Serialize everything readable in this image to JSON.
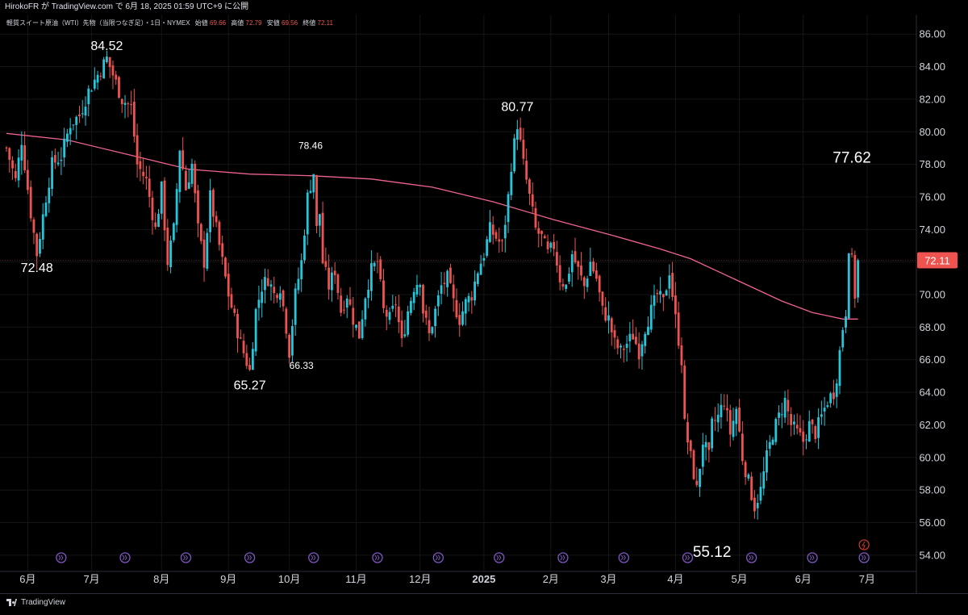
{
  "header": {
    "publish_line": "HirokoFR が TradingView.com で 6月 18, 2025 01:59 UTC+9 に公開",
    "legend_symbol": "軽質スイート原油（WTI）先物（当限つなぎ足）・1日・NYMEX",
    "legend_open_label": "始値",
    "legend_open": "69.66",
    "legend_high_label": "高値",
    "legend_high": "72.79",
    "legend_low_label": "安値",
    "legend_low": "69.56",
    "legend_close_label": "終値",
    "legend_close": "72.11"
  },
  "footer": {
    "brand": "TradingView"
  },
  "colors": {
    "background": "#000000",
    "up": "#26c6da",
    "down": "#ef5350",
    "ma": "#f06292",
    "price_tag": "#ef5350",
    "event_marker": "#7e57c2"
  },
  "chart_data": {
    "type": "candlestick",
    "interval": "1日",
    "ylim": [
      53.0,
      87.2
    ],
    "y_ticks": [
      "86.00",
      "84.00",
      "82.00",
      "80.00",
      "78.00",
      "76.00",
      "74.00",
      "72.00",
      "70.00",
      "68.00",
      "66.00",
      "64.00",
      "62.00",
      "60.00",
      "58.00",
      "56.00",
      "54.00"
    ],
    "x_ticks": [
      {
        "label": "6月",
        "t": 7
      },
      {
        "label": "7月",
        "t": 28
      },
      {
        "label": "8月",
        "t": 51
      },
      {
        "label": "9月",
        "t": 73
      },
      {
        "label": "10月",
        "t": 93
      },
      {
        "label": "11月",
        "t": 115
      },
      {
        "label": "12月",
        "t": 136
      },
      {
        "label": "2025",
        "t": 157,
        "bold": true
      },
      {
        "label": "2月",
        "t": 179
      },
      {
        "label": "3月",
        "t": 198
      },
      {
        "label": "4月",
        "t": 220
      },
      {
        "label": "5月",
        "t": 241
      },
      {
        "label": "6月",
        "t": 262
      },
      {
        "label": "7月",
        "t": 283
      }
    ],
    "last_price": "72.11",
    "last_price_value": 72.11,
    "price_line_value": 72.11,
    "annotations": [
      {
        "text": "84.52",
        "value": 84.52,
        "t": 33,
        "size": "large",
        "pos": "above"
      },
      {
        "text": "72.48",
        "value": 72.48,
        "t": 10,
        "size": "large",
        "pos": "below"
      },
      {
        "text": "78.46",
        "value": 78.46,
        "t": 100,
        "size": "small",
        "pos": "above"
      },
      {
        "text": "65.27",
        "value": 65.27,
        "t": 80,
        "size": "large",
        "pos": "below"
      },
      {
        "text": "66.33",
        "value": 66.33,
        "t": 97,
        "size": "small",
        "pos": "below"
      },
      {
        "text": "80.77",
        "value": 80.77,
        "t": 168,
        "size": "large",
        "pos": "above"
      },
      {
        "text": "55.12",
        "value": 55.12,
        "t": 232,
        "size": "xlarge",
        "pos": "below"
      },
      {
        "text": "77.62",
        "value": 77.62,
        "t": 278,
        "size": "xlarge",
        "pos": "above"
      }
    ],
    "keypoints": [
      [
        0,
        79
      ],
      [
        3,
        77
      ],
      [
        5,
        79.5
      ],
      [
        8,
        75
      ],
      [
        10,
        72.5
      ],
      [
        13,
        76
      ],
      [
        15,
        78
      ],
      [
        18,
        78.5
      ],
      [
        21,
        80.5
      ],
      [
        24,
        81
      ],
      [
        27,
        82.5
      ],
      [
        30,
        83.5
      ],
      [
        33,
        84.5
      ],
      [
        36,
        83
      ],
      [
        38,
        82
      ],
      [
        41,
        81.5
      ],
      [
        43,
        78
      ],
      [
        46,
        77
      ],
      [
        49,
        74
      ],
      [
        51,
        76.5
      ],
      [
        53,
        72
      ],
      [
        55,
        74
      ],
      [
        57,
        79
      ],
      [
        59,
        76.5
      ],
      [
        61,
        78
      ],
      [
        63,
        74
      ],
      [
        65,
        72
      ],
      [
        67,
        76
      ],
      [
        69,
        74
      ],
      [
        71,
        72
      ],
      [
        73,
        70
      ],
      [
        75,
        68.5
      ],
      [
        77,
        67
      ],
      [
        80,
        65.3
      ],
      [
        82,
        69
      ],
      [
        84,
        70.5
      ],
      [
        86,
        71
      ],
      [
        88,
        70
      ],
      [
        90,
        70.5
      ],
      [
        92,
        68
      ],
      [
        93,
        66.5
      ],
      [
        95,
        70
      ],
      [
        97,
        72
      ],
      [
        99,
        76
      ],
      [
        101,
        77.5
      ],
      [
        102,
        74
      ],
      [
        103,
        75
      ],
      [
        104,
        72
      ],
      [
        106,
        70.5
      ],
      [
        108,
        71.5
      ],
      [
        110,
        69
      ],
      [
        112,
        70
      ],
      [
        114,
        68.5
      ],
      [
        116,
        67.5
      ],
      [
        118,
        70
      ],
      [
        120,
        71.5
      ],
      [
        122,
        72
      ],
      [
        124,
        69
      ],
      [
        126,
        68.5
      ],
      [
        128,
        69.5
      ],
      [
        130,
        67
      ],
      [
        132,
        69
      ],
      [
        134,
        70.5
      ],
      [
        136,
        71
      ],
      [
        137,
        69
      ],
      [
        139,
        67.5
      ],
      [
        141,
        69
      ],
      [
        143,
        70.5
      ],
      [
        145,
        71
      ],
      [
        147,
        69.5
      ],
      [
        149,
        68.5
      ],
      [
        151,
        69.5
      ],
      [
        153,
        70
      ],
      [
        155,
        71.5
      ],
      [
        157,
        72.5
      ],
      [
        159,
        74
      ],
      [
        161,
        73.5
      ],
      [
        163,
        73
      ],
      [
        165,
        76
      ],
      [
        166,
        78
      ],
      [
        168,
        80.5
      ],
      [
        170,
        78
      ],
      [
        172,
        76
      ],
      [
        174,
        74
      ],
      [
        176,
        73.5
      ],
      [
        178,
        72.5
      ],
      [
        180,
        73
      ],
      [
        182,
        71
      ],
      [
        184,
        70.5
      ],
      [
        186,
        72.5
      ],
      [
        188,
        71.5
      ],
      [
        190,
        70.5
      ],
      [
        192,
        72
      ],
      [
        194,
        71
      ],
      [
        196,
        69
      ],
      [
        198,
        68.5
      ],
      [
        200,
        67
      ],
      [
        202,
        66.5
      ],
      [
        204,
        67
      ],
      [
        206,
        67.5
      ],
      [
        208,
        66.5
      ],
      [
        210,
        68
      ],
      [
        212,
        69
      ],
      [
        214,
        70
      ],
      [
        216,
        69.5
      ],
      [
        218,
        71.5
      ],
      [
        220,
        68.5
      ],
      [
        222,
        66
      ],
      [
        223,
        62
      ],
      [
        225,
        60
      ],
      [
        227,
        58
      ],
      [
        229,
        61
      ],
      [
        231,
        60
      ],
      [
        232,
        62
      ],
      [
        234,
        62.5
      ],
      [
        236,
        63.5
      ],
      [
        238,
        61.5
      ],
      [
        240,
        63
      ],
      [
        242,
        60
      ],
      [
        244,
        58.5
      ],
      [
        246,
        57
      ],
      [
        248,
        58
      ],
      [
        250,
        60
      ],
      [
        252,
        61.5
      ],
      [
        254,
        62.5
      ],
      [
        256,
        63.5
      ],
      [
        258,
        62
      ],
      [
        260,
        61.5
      ],
      [
        262,
        61
      ],
      [
        264,
        62
      ],
      [
        266,
        61.5
      ],
      [
        268,
        62.5
      ],
      [
        270,
        63.5
      ],
      [
        272,
        64
      ],
      [
        273,
        65
      ],
      [
        275,
        68
      ],
      [
        276,
        69
      ],
      [
        277,
        73
      ],
      [
        278,
        72
      ],
      [
        279,
        70
      ],
      [
        280,
        72.1
      ]
    ],
    "candles_count": 281,
    "ma_series": [
      [
        0,
        79.9
      ],
      [
        20,
        79.5
      ],
      [
        40,
        78.6
      ],
      [
        60,
        77.7
      ],
      [
        80,
        77.4
      ],
      [
        100,
        77.3
      ],
      [
        120,
        77.1
      ],
      [
        140,
        76.6
      ],
      [
        160,
        75.7
      ],
      [
        180,
        74.6
      ],
      [
        200,
        73.6
      ],
      [
        215,
        72.8
      ],
      [
        225,
        72.2
      ],
      [
        240,
        70.9
      ],
      [
        255,
        69.6
      ],
      [
        265,
        68.9
      ],
      [
        275,
        68.5
      ],
      [
        280,
        68.5
      ]
    ],
    "event_markers_t": [
      18,
      39,
      59,
      80,
      101,
      122,
      142,
      162,
      183,
      203,
      224,
      245,
      265,
      282
    ],
    "alert_marker_t": 282
  }
}
